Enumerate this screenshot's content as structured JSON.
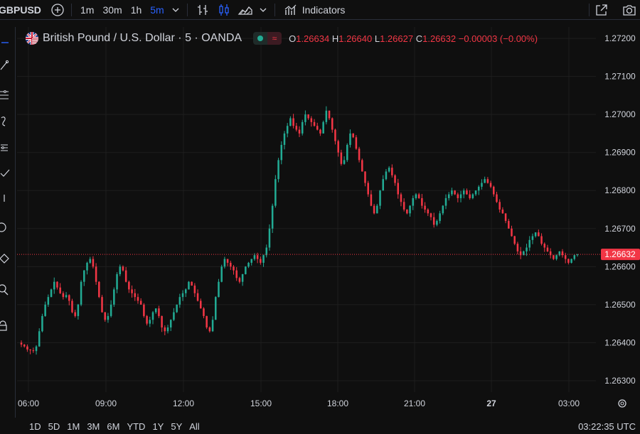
{
  "toolbar": {
    "symbol": "GBPUSD",
    "intervals": [
      "1m",
      "30m",
      "1h",
      "5m"
    ],
    "active_interval": "5m",
    "indicators_label": "Indicators"
  },
  "legend": {
    "title": "British Pound / U.S. Dollar · 5 · OANDA",
    "o_key": "O",
    "o_val": "1.26634",
    "h_key": "H",
    "h_val": "1.26640",
    "l_key": "L",
    "l_val": "1.26627",
    "c_key": "C",
    "c_val": "1.26632",
    "change": "−0.00003 (−0.00%)"
  },
  "colors": {
    "up": "#22ab94",
    "down": "#f23645",
    "grid": "#1e1e1e",
    "axis_text": "#d1d4dc",
    "price_label_bg": "#f23645",
    "active_interval": "#2962ff"
  },
  "chart_data": {
    "type": "candlestick",
    "y_ticks": [
      "1.27200",
      "1.27100",
      "1.27000",
      "1.26900",
      "1.26800",
      "1.26700",
      "1.26600",
      "1.26500",
      "1.26400",
      "1.26300"
    ],
    "ylim": [
      1.2627,
      1.2723
    ],
    "x_ticks": [
      "06:00",
      "09:00",
      "12:00",
      "15:00",
      "18:00",
      "21:00",
      "27",
      "03:00"
    ],
    "current_price": "1.26632",
    "current_price_value": 1.26632,
    "closes": [
      1.26395,
      1.2639,
      1.26382,
      1.2638,
      1.26378,
      1.2639,
      1.2643,
      1.2647,
      1.265,
      1.2652,
      1.2654,
      1.2656,
      1.26545,
      1.2653,
      1.2652,
      1.26525,
      1.2651,
      1.2648,
      1.2647,
      1.265,
      1.2656,
      1.2659,
      1.2661,
      1.2662,
      1.266,
      1.2656,
      1.2652,
      1.2648,
      1.2646,
      1.2647,
      1.265,
      1.2654,
      1.2658,
      1.266,
      1.2659,
      1.2656,
      1.2654,
      1.2653,
      1.2652,
      1.2651,
      1.265,
      1.2647,
      1.2645,
      1.2646,
      1.2648,
      1.2649,
      1.2647,
      1.2644,
      1.2643,
      1.2644,
      1.2646,
      1.2648,
      1.265,
      1.2652,
      1.2653,
      1.2654,
      1.2656,
      1.2655,
      1.2653,
      1.2651,
      1.2649,
      1.2647,
      1.2644,
      1.2643,
      1.2646,
      1.2652,
      1.2656,
      1.266,
      1.2662,
      1.2661,
      1.266,
      1.2659,
      1.2657,
      1.2656,
      1.2658,
      1.266,
      1.2661,
      1.2662,
      1.2663,
      1.2662,
      1.2661,
      1.2663,
      1.2665,
      1.267,
      1.2676,
      1.2683,
      1.2688,
      1.2692,
      1.2695,
      1.2697,
      1.2699,
      1.2697,
      1.2696,
      1.2695,
      1.2698,
      1.27,
      1.2699,
      1.2698,
      1.2697,
      1.2696,
      1.2695,
      1.2698,
      1.2701,
      1.2699,
      1.2696,
      1.2693,
      1.269,
      1.2687,
      1.2688,
      1.2692,
      1.2695,
      1.2694,
      1.2691,
      1.2688,
      1.2685,
      1.2682,
      1.2679,
      1.2676,
      1.2674,
      1.2676,
      1.268,
      1.2683,
      1.2685,
      1.2686,
      1.2684,
      1.2682,
      1.2679,
      1.2677,
      1.2675,
      1.2674,
      1.2676,
      1.2678,
      1.2679,
      1.2678,
      1.2676,
      1.2675,
      1.2674,
      1.2673,
      1.2671,
      1.2672,
      1.2674,
      1.2676,
      1.2678,
      1.2679,
      1.268,
      1.2679,
      1.2678,
      1.2679,
      1.268,
      1.2679,
      1.2678,
      1.2679,
      1.268,
      1.2681,
      1.2682,
      1.2683,
      1.2682,
      1.2681,
      1.2679,
      1.2677,
      1.2675,
      1.2674,
      1.2672,
      1.267,
      1.2668,
      1.2666,
      1.2664,
      1.2663,
      1.2664,
      1.2665,
      1.2667,
      1.2668,
      1.2669,
      1.2668,
      1.2666,
      1.2665,
      1.2664,
      1.2663,
      1.2662,
      1.2663,
      1.2664,
      1.2663,
      1.2662,
      1.2661,
      1.2662,
      1.2663,
      1.26632
    ]
  },
  "bottom": {
    "ranges": [
      "1D",
      "5D",
      "1M",
      "3M",
      "6M",
      "YTD",
      "1Y",
      "5Y",
      "All"
    ],
    "clock": "03:22:35 UTC"
  }
}
